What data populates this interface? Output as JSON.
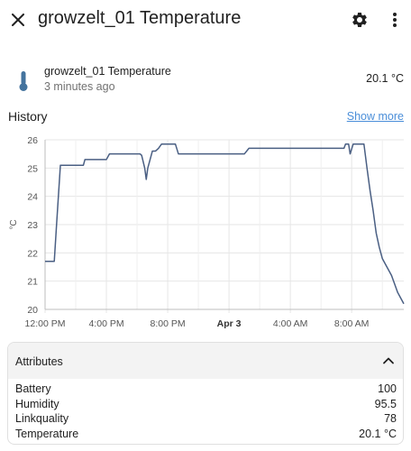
{
  "header": {
    "title": "growzelt_01 Temperature"
  },
  "entity": {
    "name": "growzelt_01 Temperature",
    "last_changed": "3 minutes ago",
    "state": "20.1 °C"
  },
  "history": {
    "title": "History",
    "show_more": "Show more"
  },
  "chart_data": {
    "type": "line",
    "ylabel": "°C",
    "ylim": [
      20,
      26
    ],
    "yticks": [
      20,
      21,
      22,
      23,
      24,
      25,
      26
    ],
    "x_tick_labels": [
      "12:00 PM",
      "4:00 PM",
      "8:00 PM",
      "Apr 3",
      "4:00 AM",
      "8:00 AM"
    ],
    "x_range_hours": [
      0,
      23.4
    ],
    "grid": true,
    "series": [
      {
        "color": "#4a5f83",
        "x": [
          0,
          0.3,
          0.6,
          0.75,
          1.0,
          1.4,
          1.6,
          2.5,
          2.6,
          4.0,
          4.2,
          6.2,
          6.3,
          6.5,
          6.6,
          6.7,
          6.8,
          7.0,
          7.2,
          7.4,
          7.6,
          7.8,
          8.5,
          8.7,
          8.8,
          13.0,
          13.3,
          19.5,
          19.6,
          19.8,
          19.9,
          20.1,
          20.3,
          20.8,
          21.0,
          21.1,
          21.2,
          21.4,
          21.6,
          21.8,
          22.0,
          22.3,
          22.6,
          22.8,
          23.0,
          23.2,
          23.4
        ],
        "y": [
          21.7,
          21.7,
          21.7,
          23.0,
          25.1,
          25.1,
          25.1,
          25.1,
          25.3,
          25.3,
          25.5,
          25.5,
          25.45,
          25.0,
          24.6,
          25.0,
          25.2,
          25.6,
          25.6,
          25.7,
          25.85,
          25.85,
          25.85,
          25.5,
          25.5,
          25.5,
          25.7,
          25.7,
          25.85,
          25.85,
          25.5,
          25.85,
          25.85,
          25.85,
          25.0,
          24.6,
          24.2,
          23.5,
          22.7,
          22.2,
          21.8,
          21.5,
          21.2,
          20.9,
          20.6,
          20.4,
          20.2
        ]
      }
    ]
  },
  "attributes": {
    "title": "Attributes",
    "rows": [
      {
        "label": "Battery",
        "value": "100"
      },
      {
        "label": "Humidity",
        "value": "95.5"
      },
      {
        "label": "Linkquality",
        "value": "78"
      },
      {
        "label": "Temperature",
        "value": "20.1 °C"
      }
    ]
  },
  "icons": {
    "close": "close-icon",
    "settings": "gear-icon",
    "more": "more-vertical-icon",
    "entity": "thermometer-icon",
    "expand": "chevron-up-icon"
  },
  "colors": {
    "accent_link": "#4a8ed9",
    "line": "#4a5f83",
    "icon": "#44739e"
  }
}
